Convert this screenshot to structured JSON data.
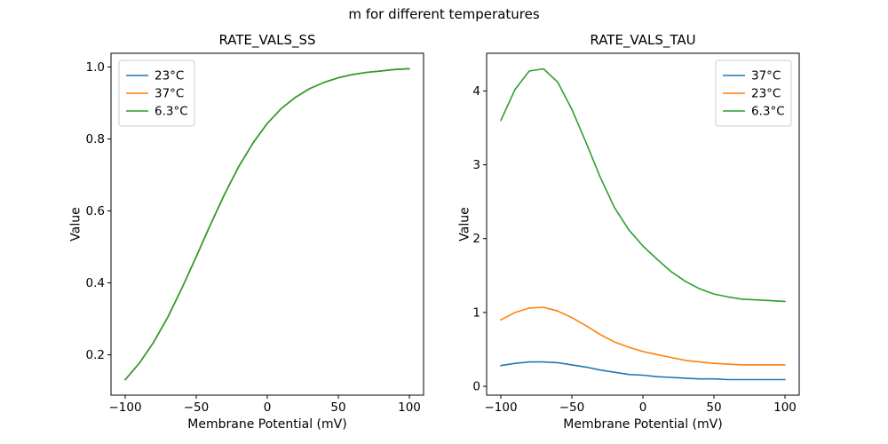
{
  "suptitle": "m for different temperatures",
  "chart_data": [
    {
      "type": "line",
      "title": "RATE_VALS_SS",
      "xlabel": "Membrane Potential (mV)",
      "ylabel": "Value",
      "xlim": [
        -110,
        110
      ],
      "ylim": [
        0.088,
        1.038
      ],
      "xticks": [
        -100,
        -50,
        0,
        50,
        100
      ],
      "yticks": [
        0.2,
        0.4,
        0.6,
        0.8,
        1.0
      ],
      "ytick_decimals": 1,
      "grid": false,
      "legend_position": "upper left",
      "x": [
        -100,
        -90,
        -80,
        -70,
        -60,
        -50,
        -40,
        -30,
        -20,
        -10,
        0,
        10,
        20,
        30,
        40,
        50,
        60,
        70,
        80,
        90,
        100
      ],
      "series": [
        {
          "name": "23°C",
          "color": "#1f77b4",
          "values": [
            0.131,
            0.177,
            0.235,
            0.305,
            0.386,
            0.473,
            0.562,
            0.647,
            0.724,
            0.789,
            0.843,
            0.885,
            0.916,
            0.94,
            0.957,
            0.97,
            0.979,
            0.985,
            0.989,
            0.993,
            0.995
          ]
        },
        {
          "name": "37°C",
          "color": "#ff7f0e",
          "values": [
            0.131,
            0.177,
            0.235,
            0.305,
            0.386,
            0.473,
            0.562,
            0.647,
            0.724,
            0.789,
            0.843,
            0.885,
            0.916,
            0.94,
            0.957,
            0.97,
            0.979,
            0.985,
            0.989,
            0.993,
            0.995
          ]
        },
        {
          "name": "6.3°C",
          "color": "#2ca02c",
          "values": [
            0.131,
            0.177,
            0.235,
            0.305,
            0.386,
            0.473,
            0.562,
            0.647,
            0.724,
            0.789,
            0.843,
            0.885,
            0.916,
            0.94,
            0.957,
            0.97,
            0.979,
            0.985,
            0.989,
            0.993,
            0.995
          ]
        }
      ]
    },
    {
      "type": "line",
      "title": "RATE_VALS_TAU",
      "xlabel": "Membrane Potential (mV)",
      "ylabel": "Value",
      "xlim": [
        -110,
        110
      ],
      "ylim": [
        -0.12,
        4.51
      ],
      "xticks": [
        -100,
        -50,
        0,
        50,
        100
      ],
      "yticks": [
        0,
        1,
        2,
        3,
        4
      ],
      "ytick_decimals": 0,
      "grid": false,
      "legend_position": "upper right",
      "x": [
        -100,
        -90,
        -80,
        -70,
        -60,
        -50,
        -40,
        -30,
        -20,
        -10,
        0,
        10,
        20,
        30,
        40,
        50,
        60,
        70,
        80,
        90,
        100
      ],
      "series": [
        {
          "name": "37°C",
          "color": "#1f77b4",
          "values": [
            0.28,
            0.31,
            0.33,
            0.33,
            0.32,
            0.29,
            0.26,
            0.22,
            0.19,
            0.16,
            0.15,
            0.13,
            0.12,
            0.11,
            0.1,
            0.1,
            0.09,
            0.09,
            0.09,
            0.09,
            0.09
          ]
        },
        {
          "name": "23°C",
          "color": "#ff7f0e",
          "values": [
            0.9,
            1.0,
            1.06,
            1.07,
            1.02,
            0.93,
            0.82,
            0.7,
            0.6,
            0.53,
            0.47,
            0.43,
            0.39,
            0.35,
            0.33,
            0.31,
            0.3,
            0.29,
            0.29,
            0.29,
            0.29
          ]
        },
        {
          "name": "6.3°C",
          "color": "#2ca02c",
          "values": [
            3.6,
            4.02,
            4.27,
            4.3,
            4.12,
            3.75,
            3.3,
            2.83,
            2.42,
            2.12,
            1.9,
            1.72,
            1.55,
            1.42,
            1.32,
            1.25,
            1.21,
            1.18,
            1.17,
            1.16,
            1.15
          ]
        }
      ]
    }
  ]
}
